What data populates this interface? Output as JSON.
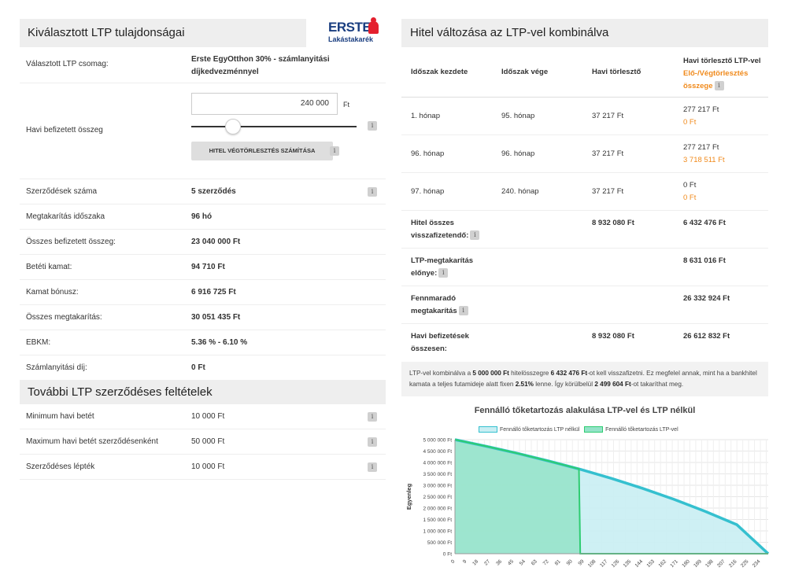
{
  "left": {
    "title": "Kiválasztott LTP tulajdonságai",
    "logo": {
      "brand": "ERSTE",
      "sub": "Lakástakarék"
    },
    "package_label": "Választott LTP csomag:",
    "package_value": "Erste EgyOtthon 30% - számlanyitási díjkedvezménnyel",
    "monthly_label": "Havi befizetett összeg",
    "monthly_input_value": "240 000",
    "monthly_unit": "Ft",
    "calc_button": "HITEL VÉGTÖRLESZTÉS SZÁMÍTÁSA",
    "info_glyph": "i",
    "rows": [
      {
        "label": "Szerződések száma",
        "value": "5 szerződés",
        "info": true
      },
      {
        "label": "Megtakarítás időszaka",
        "value": "96 hó",
        "info": false
      },
      {
        "label": "Összes befizetett összeg:",
        "value": "23 040 000 Ft",
        "info": false
      },
      {
        "label": "Betéti kamat:",
        "value": "94 710 Ft",
        "info": false
      },
      {
        "label": "Kamat bónusz:",
        "value": "6 916 725 Ft",
        "info": false
      },
      {
        "label": "Összes megtakarítás:",
        "value": "30 051 435 Ft",
        "info": false
      },
      {
        "label": "EBKM:",
        "value": "5.36 % - 6.10 %",
        "info": false
      },
      {
        "label": "Számlanyitási díj:",
        "value": "0 Ft",
        "info": false
      }
    ],
    "further_title": "További LTP szerződéses feltételek",
    "further_rows": [
      {
        "label": "Minimum havi betét",
        "value": "10 000 Ft"
      },
      {
        "label": "Maximum havi betét szerződésenként",
        "value": "50 000 Ft"
      },
      {
        "label": "Szerződéses lépték",
        "value": "10 000 Ft"
      }
    ]
  },
  "right": {
    "title": "Hitel változása az LTP-vel kombinálva",
    "headers": {
      "start": "Időszak kezdete",
      "end": "Időszak vége",
      "monthly": "Havi törlesztő",
      "ltp_line1": "Havi törlesztő LTP-vel",
      "ltp_line2": "Elő-/Végtörlesztés",
      "ltp_line3": "összege"
    },
    "periods": [
      {
        "start": "1. hónap",
        "end": "95. hónap",
        "monthly": "37 217 Ft",
        "ltp": "277 217 Ft",
        "prepay": "0 Ft"
      },
      {
        "start": "96. hónap",
        "end": "96. hónap",
        "monthly": "37 217 Ft",
        "ltp": "277 217 Ft",
        "prepay": "3 718 511 Ft"
      },
      {
        "start": "97. hónap",
        "end": "240. hónap",
        "monthly": "37 217 Ft",
        "ltp": "0 Ft",
        "prepay": "0 Ft"
      }
    ],
    "summary": {
      "total_label_1": "Hitel összes",
      "total_label_2": "visszafizetendő:",
      "total_monthly": "8 932 080 Ft",
      "total_ltp": "6 432 476 Ft",
      "adv_label_1": "LTP-megtakarítás",
      "adv_label_2": "előnye:",
      "adv_value": "8 631 016 Ft",
      "rem_label_1": "Fennmaradó",
      "rem_label_2": "megtakarítás",
      "rem_value": "26 332 924 Ft",
      "pay_label_1": "Havi befizetések",
      "pay_label_2": "összesen:",
      "pay_monthly": "8 932 080 Ft",
      "pay_ltp": "26 612 832 Ft"
    },
    "note": {
      "p1": "LTP-vel kombinálva a ",
      "b1": "5 000 000 Ft",
      "p2": " hitelösszegre ",
      "b2": "6 432 476 Ft",
      "p3": "-ot kell visszafizetni. Ez megfelel annak, mint ha a bankhitel kamata a teljes futamideje alatt fixen ",
      "b3": "2.51%",
      "p4": " lenne. Így körülbelül ",
      "b4": "2 499 604 Ft",
      "p5": "-ot takaríthat meg."
    }
  },
  "chart_data": {
    "type": "area",
    "title": "Fennálló tőketartozás alakulása LTP-vel és LTP nélkül",
    "ylabel": "Egyenleg",
    "xlabel": "",
    "ylim": [
      0,
      5000000
    ],
    "xlim": [
      0,
      240
    ],
    "grid": true,
    "legend": "top-center",
    "yticks": [
      "0 Ft",
      "500 000 Ft",
      "1 000 000 Ft",
      "1 500 000 Ft",
      "2 000 000 Ft",
      "2 500 000 Ft",
      "3 000 000 Ft",
      "3 500 000 Ft",
      "4 000 000 Ft",
      "4 500 000 Ft",
      "5 000 000 Ft"
    ],
    "xticks": [
      0,
      9,
      18,
      27,
      36,
      45,
      54,
      63,
      72,
      81,
      90,
      99,
      108,
      117,
      126,
      135,
      144,
      153,
      162,
      171,
      180,
      189,
      198,
      207,
      216,
      225,
      234
    ],
    "series": [
      {
        "name": "Fennálló tőketartozás LTP nélkül",
        "color": "#35c0cf",
        "fill": "#c9eef3",
        "x": [
          0,
          24,
          48,
          72,
          96,
          120,
          144,
          168,
          192,
          216,
          240
        ],
        "y": [
          5000000,
          4710000,
          4400000,
          4060000,
          3700000,
          3300000,
          2860000,
          2380000,
          1850000,
          1270000,
          0
        ]
      },
      {
        "name": "Fennálló tőketartozás LTP-vel",
        "color": "#2ecc71",
        "fill": "#94e3c8",
        "x": [
          0,
          24,
          48,
          72,
          95,
          96,
          240
        ],
        "y": [
          5000000,
          4710000,
          4400000,
          4060000,
          3718511,
          0,
          0
        ]
      }
    ]
  }
}
